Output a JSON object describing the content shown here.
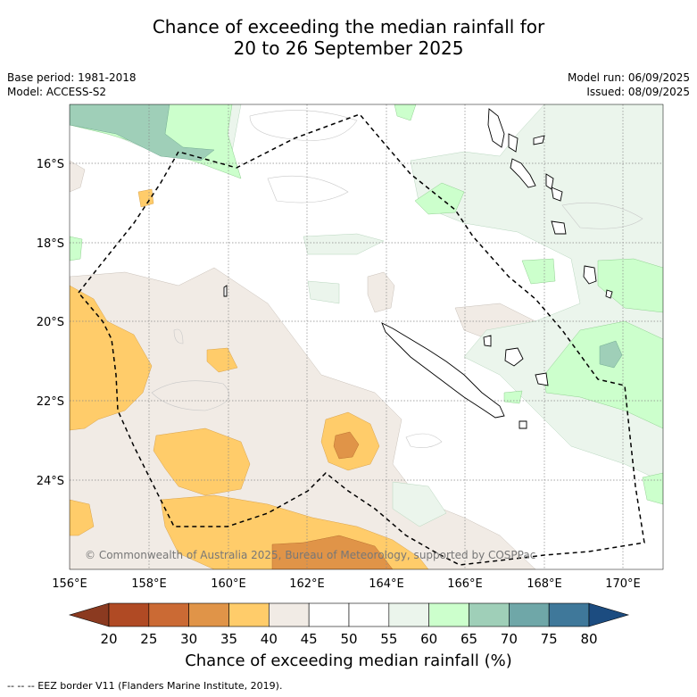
{
  "title_line1": "Chance of exceeding the median rainfall for",
  "title_line2": "20 to 26 September 2025",
  "meta_left": {
    "base_period": "Base period: 1981-2018",
    "model": "Model: ACCESS-S2"
  },
  "meta_right": {
    "model_run": "Model run: 06/09/2025",
    "issued": "Issued: 08/09/2025"
  },
  "lat_labels": [
    "16°S",
    "18°S",
    "20°S",
    "22°S",
    "24°S"
  ],
  "lon_labels": [
    "156°E",
    "158°E",
    "160°E",
    "162°E",
    "164°E",
    "166°E",
    "168°E",
    "170°E"
  ],
  "copyright": "© Commonwealth of Australia 2025, Bureau of Meteorology, supported by COSPPac",
  "colorbar": {
    "ticks": [
      "20",
      "25",
      "30",
      "35",
      "40",
      "45",
      "50",
      "55",
      "60",
      "65",
      "70",
      "75",
      "80"
    ],
    "colors": [
      "#8b3a20",
      "#b04a24",
      "#cb6a34",
      "#e09448",
      "#ffcc6a",
      "#f1ebe5",
      "#ffffff",
      "#ffffff",
      "#ebf5ec",
      "#ccffcc",
      "#9fcfb8",
      "#6fa7a8",
      "#3f789a",
      "#1c4c80"
    ],
    "label": "Chance of exceeding median rainfall (%)"
  },
  "legend_text": "-- -- -- EEZ border V11 (Flanders Marine Institute, 2019)."
}
